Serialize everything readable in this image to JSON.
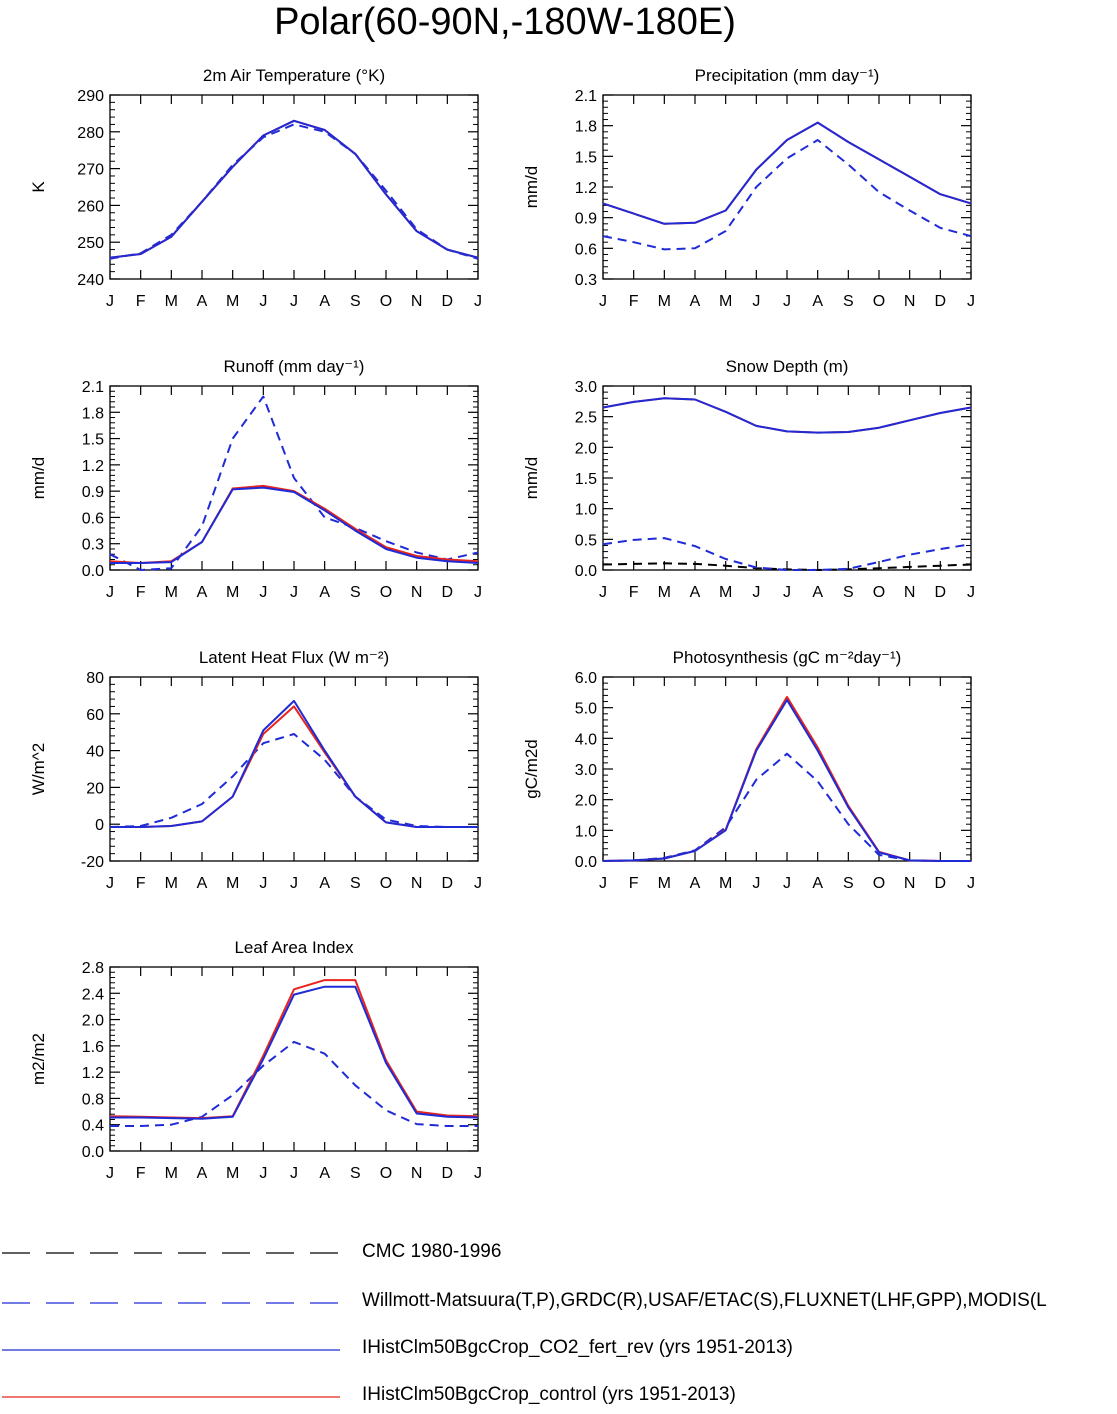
{
  "title": "Polar(60-90N,-180W-180E)",
  "months": [
    "J",
    "F",
    "M",
    "A",
    "M",
    "J",
    "J",
    "A",
    "S",
    "O",
    "N",
    "D",
    "J"
  ],
  "colors": {
    "obs_cmc": "#000000",
    "obs": "#1f2bd6",
    "co2_fert_rev": "#1f2bd6",
    "control": "#e8241c"
  },
  "legend": [
    {
      "label": "CMC 1980-1996",
      "color": "#000000",
      "style": "dashed"
    },
    {
      "label": "Willmott-Matsuura(T,P),GRDC(R),USAF/ETAC(S),FLUXNET(LHF,GPP),MODIS(L",
      "color": "#1f2bd6",
      "style": "dashed"
    },
    {
      "label": "IHistClm50BgcCrop_CO2_fert_rev (yrs 1951-2013)",
      "color": "#1f2bd6",
      "style": "solid"
    },
    {
      "label": "IHistClm50BgcCrop_control (yrs 1951-2013)",
      "color": "#e8241c",
      "style": "solid"
    }
  ],
  "chart_data": [
    {
      "type": "line",
      "title": "2m Air Temperature (°K)",
      "ylabel": "K",
      "ylim": [
        240,
        290
      ],
      "yticks": [
        "240",
        "250",
        "260",
        "270",
        "280",
        "290"
      ],
      "series": [
        {
          "key": "obs",
          "dashed": true,
          "values": [
            245.5,
            247,
            252,
            261,
            271,
            278.5,
            282,
            280,
            274,
            264,
            253.5,
            248,
            245.5
          ]
        },
        {
          "key": "control",
          "dashed": false,
          "values": [
            245.8,
            246.8,
            251.5,
            261,
            270.5,
            279,
            283,
            280.5,
            274,
            263,
            253,
            248,
            245.8
          ]
        },
        {
          "key": "co2_fert_rev",
          "dashed": false,
          "values": [
            245.8,
            246.8,
            251.5,
            261,
            270.5,
            279,
            283,
            280.5,
            274,
            263,
            253,
            248,
            245.8
          ]
        }
      ]
    },
    {
      "type": "line",
      "title": "Precipitation (mm day⁻¹)",
      "ylabel": "mm/d",
      "ylim": [
        0.3,
        2.1
      ],
      "yticks": [
        "0.3",
        "0.6",
        "0.9",
        "1.2",
        "1.5",
        "1.8",
        "2.1"
      ],
      "series": [
        {
          "key": "obs",
          "dashed": true,
          "values": [
            0.72,
            0.66,
            0.59,
            0.6,
            0.77,
            1.2,
            1.48,
            1.66,
            1.42,
            1.15,
            0.97,
            0.8,
            0.72
          ]
        },
        {
          "key": "control",
          "dashed": false,
          "values": [
            1.04,
            0.94,
            0.84,
            0.85,
            0.97,
            1.37,
            1.66,
            1.83,
            1.64,
            1.47,
            1.3,
            1.13,
            1.04
          ]
        },
        {
          "key": "co2_fert_rev",
          "dashed": false,
          "values": [
            1.04,
            0.94,
            0.84,
            0.85,
            0.97,
            1.37,
            1.66,
            1.83,
            1.64,
            1.47,
            1.3,
            1.13,
            1.04
          ]
        }
      ]
    },
    {
      "type": "line",
      "title": "Runoff (mm day⁻¹)",
      "ylabel": "mm/d",
      "ylim": [
        0.0,
        2.1
      ],
      "yticks": [
        "0.0",
        "0.3",
        "0.6",
        "0.9",
        "1.2",
        "1.5",
        "1.8",
        "2.1"
      ],
      "series": [
        {
          "key": "obs",
          "dashed": true,
          "values": [
            0.18,
            0.0,
            0.02,
            0.5,
            1.5,
            1.98,
            1.05,
            0.6,
            0.48,
            0.33,
            0.2,
            0.12,
            0.2
          ]
        },
        {
          "key": "control",
          "dashed": false,
          "values": [
            0.1,
            0.08,
            0.1,
            0.32,
            0.93,
            0.96,
            0.9,
            0.7,
            0.47,
            0.26,
            0.16,
            0.12,
            0.1
          ]
        },
        {
          "key": "co2_fert_rev",
          "dashed": false,
          "values": [
            0.08,
            0.08,
            0.09,
            0.32,
            0.92,
            0.94,
            0.89,
            0.68,
            0.45,
            0.24,
            0.14,
            0.1,
            0.08
          ]
        }
      ]
    },
    {
      "type": "line",
      "title": "Snow Depth (m)",
      "ylabel": "mm/d",
      "ylim": [
        0.0,
        3.0
      ],
      "yticks": [
        "0.0",
        "0.5",
        "1.0",
        "1.5",
        "2.0",
        "2.5",
        "3.0"
      ],
      "series": [
        {
          "key": "obs_cmc",
          "dashed": true,
          "values": [
            0.09,
            0.1,
            0.11,
            0.1,
            0.07,
            0.03,
            0.01,
            0.0,
            0.01,
            0.03,
            0.05,
            0.07,
            0.09
          ]
        },
        {
          "key": "obs",
          "dashed": true,
          "values": [
            0.42,
            0.49,
            0.52,
            0.39,
            0.18,
            0.04,
            0.0,
            0.0,
            0.02,
            0.13,
            0.25,
            0.34,
            0.42
          ]
        },
        {
          "key": "control",
          "dashed": false,
          "values": [
            2.65,
            2.74,
            2.8,
            2.78,
            2.58,
            2.35,
            2.26,
            2.24,
            2.25,
            2.32,
            2.44,
            2.56,
            2.65
          ]
        },
        {
          "key": "co2_fert_rev",
          "dashed": false,
          "values": [
            2.65,
            2.74,
            2.8,
            2.78,
            2.58,
            2.35,
            2.26,
            2.24,
            2.25,
            2.32,
            2.44,
            2.56,
            2.65
          ]
        }
      ]
    },
    {
      "type": "line",
      "title": "Latent Heat Flux (W m⁻²)",
      "ylabel": "W/m^2",
      "ylim": [
        -20,
        80
      ],
      "yticks": [
        "-20",
        "0",
        "20",
        "40",
        "60",
        "80"
      ],
      "series": [
        {
          "key": "obs",
          "dashed": true,
          "values": [
            -1.5,
            -1,
            3.5,
            11,
            26,
            44,
            49,
            35,
            15,
            2.5,
            -1,
            -1.5,
            -1.5
          ]
        },
        {
          "key": "control",
          "dashed": false,
          "values": [
            -1.5,
            -1.5,
            -1,
            1.5,
            15,
            49,
            64,
            39,
            15,
            1,
            -1.5,
            -1.5,
            -1.5
          ]
        },
        {
          "key": "co2_fert_rev",
          "dashed": false,
          "values": [
            -1.5,
            -1.5,
            -1,
            1.5,
            15,
            51,
            67,
            40,
            15,
            1,
            -1.5,
            -1.5,
            -1.5
          ]
        }
      ]
    },
    {
      "type": "line",
      "title": "Photosynthesis (gC m⁻²day⁻¹)",
      "ylabel": "gC/m2d",
      "ylim": [
        0.0,
        6.0
      ],
      "yticks": [
        "0.0",
        "1.0",
        "2.0",
        "3.0",
        "4.0",
        "5.0",
        "6.0"
      ],
      "series": [
        {
          "key": "obs",
          "dashed": true,
          "values": [
            0.0,
            0.02,
            0.1,
            0.35,
            1.1,
            2.65,
            3.5,
            2.6,
            1.2,
            0.2,
            0.02,
            0.0,
            0.0
          ]
        },
        {
          "key": "control",
          "dashed": false,
          "values": [
            0.0,
            0.02,
            0.08,
            0.33,
            1.02,
            3.65,
            5.35,
            3.7,
            1.8,
            0.3,
            0.02,
            0.0,
            0.0
          ]
        },
        {
          "key": "co2_fert_rev",
          "dashed": false,
          "values": [
            0.0,
            0.02,
            0.08,
            0.33,
            1.0,
            3.6,
            5.25,
            3.6,
            1.75,
            0.28,
            0.02,
            0.0,
            0.0
          ]
        }
      ]
    },
    {
      "type": "line",
      "title": "Leaf Area Index",
      "ylabel": "m2/m2",
      "ylim": [
        0.0,
        2.8
      ],
      "yticks": [
        "0.0",
        "0.4",
        "0.8",
        "1.2",
        "1.6",
        "2.0",
        "2.4",
        "2.8"
      ],
      "series": [
        {
          "key": "obs",
          "dashed": true,
          "values": [
            0.38,
            0.38,
            0.4,
            0.52,
            0.85,
            1.3,
            1.66,
            1.48,
            1.0,
            0.62,
            0.41,
            0.38,
            0.38
          ]
        },
        {
          "key": "control",
          "dashed": false,
          "values": [
            0.53,
            0.52,
            0.51,
            0.5,
            0.53,
            1.45,
            2.46,
            2.6,
            2.6,
            1.38,
            0.6,
            0.54,
            0.53
          ]
        },
        {
          "key": "co2_fert_rev",
          "dashed": false,
          "values": [
            0.51,
            0.51,
            0.5,
            0.49,
            0.52,
            1.4,
            2.38,
            2.5,
            2.5,
            1.34,
            0.57,
            0.52,
            0.51
          ]
        }
      ]
    }
  ]
}
